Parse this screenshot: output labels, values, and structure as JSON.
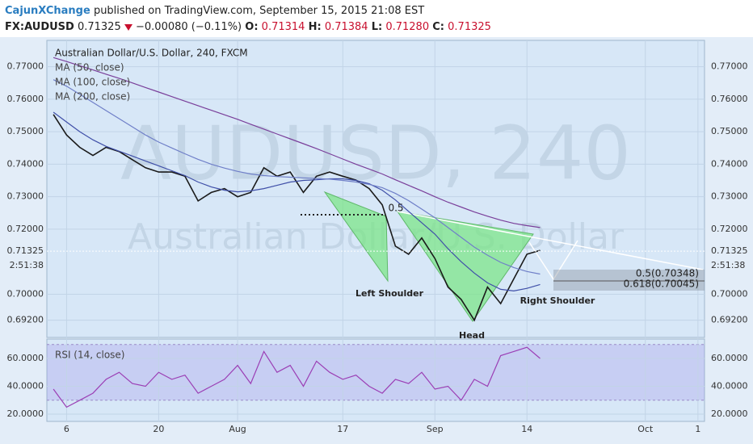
{
  "header": {
    "publisher": "CajunXChange",
    "published": "published on TradingView.com, September 15, 2015 21:08 EST",
    "symbol": "FX:AUDUSD",
    "price": "0.71325",
    "change": "−0.00080 (−0.11%)",
    "o_label": "O:",
    "o": "0.71314",
    "h_label": "H:",
    "h": "0.71384",
    "l_label": "L:",
    "l": "0.71280",
    "c_label": "C:",
    "c": "0.71325"
  },
  "chart_data": [
    {
      "type": "line",
      "title": "Australian Dollar/U.S. Dollar, 240, FXCM",
      "watermark": "AUDUSD, 240",
      "watermark_desc": "Australian Dollar/U.S. Dollar",
      "ylim": [
        0.6867,
        0.7781
      ],
      "yticks": [
        {
          "value": 0.77,
          "label": "0.77000"
        },
        {
          "value": 0.76,
          "label": "0.76000"
        },
        {
          "value": 0.75,
          "label": "0.75000"
        },
        {
          "value": 0.74,
          "label": "0.74000"
        },
        {
          "value": 0.73,
          "label": "0.73000"
        },
        {
          "value": 0.72,
          "label": "0.72000"
        },
        {
          "value": 0.7,
          "label": "0.70000"
        },
        {
          "value": 0.692,
          "label": "0.69200"
        }
      ],
      "last_price": {
        "value": 0.71325,
        "label": "0.71325"
      },
      "countdown": "2:51:38",
      "grid": true,
      "series": [
        {
          "name": "",
          "color": "#1a1a1a",
          "values": [
            0.7553,
            0.749,
            0.7452,
            0.7427,
            0.7452,
            0.7439,
            0.7414,
            0.7389,
            0.7376,
            0.7376,
            0.7363,
            0.7287,
            0.7313,
            0.7325,
            0.73,
            0.7313,
            0.7389,
            0.7363,
            0.7376,
            0.7313,
            0.7363,
            0.7376,
            0.7363,
            0.7351,
            0.7325,
            0.7275,
            0.7148,
            0.7123,
            0.7173,
            0.711,
            0.7022,
            0.6984,
            0.692,
            0.7022,
            0.6971,
            0.7047,
            0.7123,
            0.7135,
            null,
            null,
            null,
            null,
            null,
            null,
            null,
            null,
            null,
            null,
            null,
            null
          ]
        },
        {
          "name": "MA (50, close)",
          "color": "#3f4fa8",
          "values": [
            0.756,
            0.753,
            0.75,
            0.7475,
            0.7455,
            0.744,
            0.7425,
            0.741,
            0.7395,
            0.738,
            0.7365,
            0.7345,
            0.733,
            0.732,
            0.7315,
            0.7318,
            0.7325,
            0.7335,
            0.7345,
            0.735,
            0.7352,
            0.7355,
            0.7355,
            0.735,
            0.734,
            0.732,
            0.729,
            0.7255,
            0.722,
            0.7185,
            0.714,
            0.71,
            0.7065,
            0.7035,
            0.7015,
            0.701,
            0.7018,
            0.703,
            null,
            null,
            null,
            null,
            null,
            null,
            null,
            null,
            null,
            null,
            null,
            null
          ]
        },
        {
          "name": "MA (100, close)",
          "color": "#6f7fc8",
          "values": [
            0.766,
            0.764,
            0.7615,
            0.759,
            0.7565,
            0.754,
            0.7515,
            0.749,
            0.7468,
            0.745,
            0.7432,
            0.7415,
            0.74,
            0.7388,
            0.7378,
            0.737,
            0.7365,
            0.7362,
            0.736,
            0.7358,
            0.7356,
            0.7354,
            0.735,
            0.7345,
            0.7338,
            0.7328,
            0.731,
            0.7288,
            0.7262,
            0.7235,
            0.7205,
            0.7175,
            0.7145,
            0.712,
            0.7098,
            0.7082,
            0.707,
            0.7062,
            null,
            null,
            null,
            null,
            null,
            null,
            null,
            null,
            null,
            null,
            null,
            null
          ]
        },
        {
          "name": "MA (200, close)",
          "color": "#7a3f9a",
          "values": [
            0.7728,
            0.7716,
            0.7703,
            0.769,
            0.7677,
            0.7664,
            0.765,
            0.7636,
            0.7622,
            0.7608,
            0.7594,
            0.758,
            0.7566,
            0.7552,
            0.7538,
            0.7523,
            0.7508,
            0.7493,
            0.7478,
            0.7463,
            0.7448,
            0.7432,
            0.7416,
            0.74,
            0.7385,
            0.737,
            0.7352,
            0.7335,
            0.7318,
            0.73,
            0.7283,
            0.7268,
            0.7253,
            0.724,
            0.7228,
            0.7218,
            0.7211,
            0.7205,
            null,
            null,
            null,
            null,
            null,
            null,
            null,
            null,
            null,
            null,
            null,
            null
          ]
        }
      ],
      "annotations": [
        "0.5",
        "Left Shoulder",
        "Head",
        "Right Shoulder",
        "0.5(0.70348)",
        "0.618(0.70045)"
      ]
    },
    {
      "type": "line",
      "title": "RSI (14, close)",
      "ylim": [
        14.8,
        73.9
      ],
      "yticks": [
        {
          "value": 20,
          "label": "20.0000"
        },
        {
          "value": 40,
          "label": "40.0000"
        },
        {
          "value": 60,
          "label": "60.0000"
        }
      ],
      "rsi_band": [
        30,
        70
      ],
      "categories": [
        null,
        "6",
        null,
        null,
        null,
        null,
        null,
        null,
        "20",
        null,
        null,
        null,
        null,
        null,
        "Aug",
        null,
        null,
        null,
        null,
        null,
        null,
        null,
        "17",
        null,
        null,
        null,
        null,
        null,
        null,
        "Sep",
        null,
        null,
        null,
        null,
        null,
        null,
        "14",
        null,
        null,
        null,
        null,
        null,
        null,
        null,
        null,
        "Oct",
        null,
        null,
        null,
        "1"
      ],
      "series": [
        {
          "name": "",
          "color": "#9b3fb5",
          "values": [
            38,
            25,
            30,
            35,
            45,
            50,
            42,
            40,
            50,
            45,
            48,
            35,
            40,
            45,
            55,
            42,
            65,
            50,
            55,
            40,
            58,
            50,
            45,
            48,
            40,
            35,
            45,
            42,
            50,
            38,
            40,
            30,
            45,
            40,
            62,
            65,
            68,
            60,
            null,
            null,
            null,
            null,
            null,
            null,
            null,
            null,
            null,
            null,
            null,
            null
          ]
        }
      ]
    }
  ]
}
